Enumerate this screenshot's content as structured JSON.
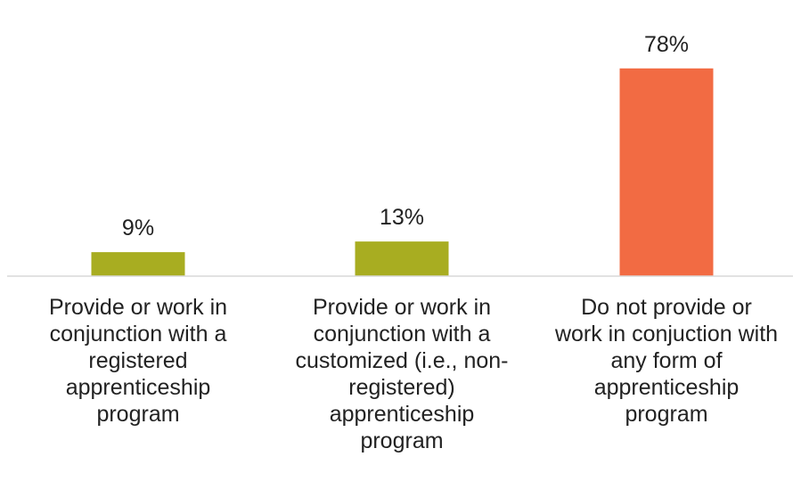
{
  "chart_data": {
    "type": "bar",
    "categories": [
      [
        "Provide or work in",
        "conjunction with a",
        "registered",
        "apprenticeship",
        "program"
      ],
      [
        "Provide or work in",
        "conjunction with a",
        "customized (i.e., non-",
        "registered)",
        "apprenticeship",
        "program"
      ],
      [
        "Do not provide or",
        "work in conjuction with",
        "any form of",
        "apprenticeship",
        "program"
      ]
    ],
    "values": [
      9,
      13,
      78
    ],
    "value_labels": [
      "9%",
      "13%",
      "78%"
    ],
    "colors": [
      "#a8ad21",
      "#a8ad21",
      "#f26b43"
    ],
    "ylim": [
      0,
      100
    ],
    "grid": false,
    "legend": "none"
  }
}
